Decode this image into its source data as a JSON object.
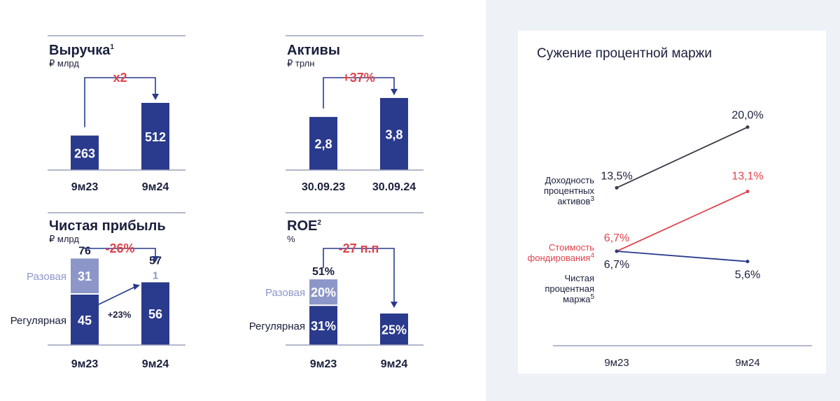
{
  "chart_data": [
    {
      "type": "bar",
      "title": "Выручка",
      "title_sup": "1",
      "unit": "₽ млрд",
      "categories": [
        "9м23",
        "9м24"
      ],
      "values": [
        263,
        512
      ],
      "value_labels": [
        "263",
        "512"
      ],
      "change": "x2"
    },
    {
      "type": "bar",
      "title": "Активы",
      "title_sup": "",
      "unit": "₽ трлн",
      "categories": [
        "30.09.23",
        "30.09.24"
      ],
      "values": [
        2.8,
        3.8
      ],
      "value_labels": [
        "2,8",
        "3,8"
      ],
      "change": "+37%"
    },
    {
      "type": "bar",
      "stacked": true,
      "title": "Чистая прибыль",
      "title_sup": "",
      "unit": "₽ млрд",
      "categories": [
        "9м23",
        "9м24"
      ],
      "series": [
        {
          "name": "Регулярная",
          "values": [
            45,
            56
          ],
          "value_labels": [
            "45",
            "56"
          ],
          "color": "#2a3a8c"
        },
        {
          "name": "Разовая",
          "values": [
            31,
            1
          ],
          "value_labels": [
            "31",
            "1"
          ],
          "color": "#8c96c8"
        }
      ],
      "totals": [
        "76",
        "57"
      ],
      "change": "-26%",
      "growth_label": "+23%"
    },
    {
      "type": "bar",
      "stacked": true,
      "title": "ROE",
      "title_sup": "2",
      "unit": "%",
      "categories": [
        "9м23",
        "9м24"
      ],
      "series": [
        {
          "name": "Регулярная",
          "values": [
            31,
            25
          ],
          "value_labels": [
            "31%",
            "25%"
          ],
          "color": "#2a3a8c"
        },
        {
          "name": "Разовая",
          "values": [
            20,
            0
          ],
          "value_labels": [
            "20%",
            ""
          ],
          "color": "#8c96c8"
        }
      ],
      "totals": [
        "51%",
        ""
      ],
      "change": "-27 п.п"
    },
    {
      "type": "line",
      "title": "Сужение процентной маржи",
      "categories": [
        "9м23",
        "9м24"
      ],
      "series": [
        {
          "name": "Доходность процентных активов",
          "name_lines": [
            "Доходность",
            "процентных",
            "активов"
          ],
          "sup": "3",
          "values": [
            13.5,
            20.0
          ],
          "value_labels": [
            "13,5%",
            "20,0%"
          ],
          "color": "#3a3a4a"
        },
        {
          "name": "Стоимость фондирования",
          "name_lines": [
            "Стоимость",
            "фондирования"
          ],
          "sup": "4",
          "values": [
            6.7,
            13.1
          ],
          "value_labels": [
            "6,7%",
            "13,1%"
          ],
          "color": "#e0434d"
        },
        {
          "name": "Чистая процентная маржа",
          "name_lines": [
            "Чистая",
            "процентная",
            "маржа"
          ],
          "sup": "5",
          "values": [
            6.7,
            5.6
          ],
          "value_labels": [
            "6,7%",
            "5,6%"
          ],
          "color": "#2a3a8c"
        }
      ],
      "ylim": [
        4,
        22
      ]
    }
  ]
}
